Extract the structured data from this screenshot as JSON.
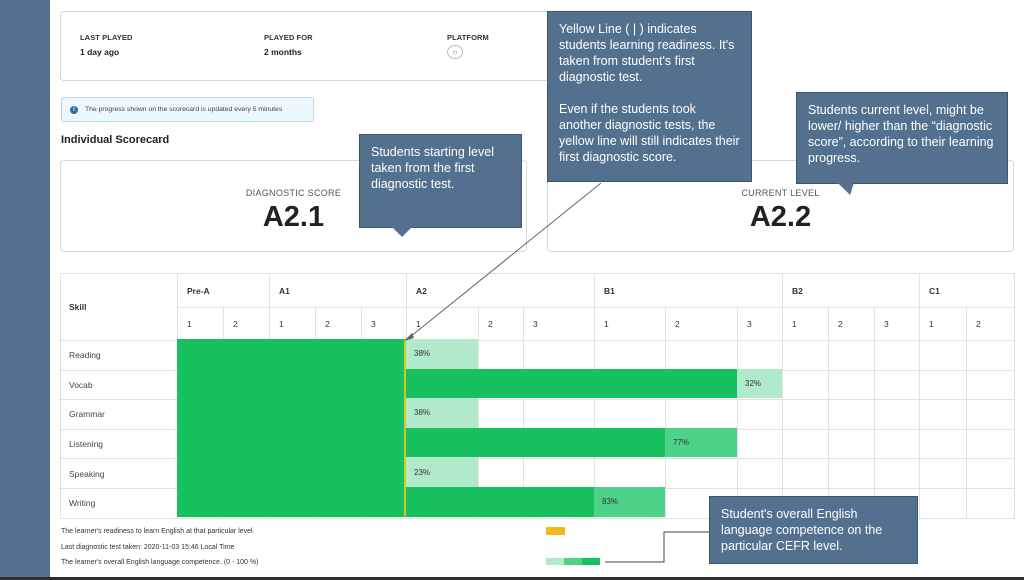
{
  "info": {
    "last_played_label": "LAST PLAYED",
    "last_played_value": "1 day ago",
    "played_for_label": "PLAYED FOR",
    "played_for_value": "2 months",
    "platform_label": "PLATFORM",
    "platform_icon": "gamepad-icon"
  },
  "notice": {
    "icon": "info-icon",
    "text": "The progress shown on the scorecard is updated every 5 minutes"
  },
  "section_title": "Individual Scorecard",
  "diagnostic": {
    "label": "DIAGNOSTIC SCORE",
    "value": "A2.1"
  },
  "current": {
    "label": "CURRENT LEVEL",
    "value": "A2.2"
  },
  "table": {
    "skill_header": "Skill",
    "levels": [
      {
        "name": "Pre-A",
        "subs": [
          "1",
          "2"
        ]
      },
      {
        "name": "A1",
        "subs": [
          "1",
          "2",
          "3"
        ]
      },
      {
        "name": "A2",
        "subs": [
          "1",
          "2",
          "3"
        ]
      },
      {
        "name": "B1",
        "subs": [
          "1",
          "2",
          "3"
        ]
      },
      {
        "name": "B2",
        "subs": [
          "1",
          "2",
          "3"
        ]
      },
      {
        "name": "C1",
        "subs": [
          "1",
          "2"
        ]
      }
    ],
    "skills": [
      {
        "name": "Reading",
        "full_through": 5,
        "partial_column": 5,
        "percent": 38,
        "label": "38%"
      },
      {
        "name": "Vocab",
        "full_through": 10,
        "partial_column": 10,
        "percent": 32,
        "label": "32%"
      },
      {
        "name": "Grammar",
        "full_through": 5,
        "partial_column": 5,
        "percent": 38,
        "label": "38%"
      },
      {
        "name": "Listening",
        "full_through": 9,
        "partial_column": 9,
        "percent": 77,
        "label": "77%"
      },
      {
        "name": "Speaking",
        "full_through": 5,
        "partial_column": 5,
        "percent": 23,
        "label": "23%"
      },
      {
        "name": "Writing",
        "full_through": 8,
        "partial_column": 8,
        "percent": 83,
        "label": "83%"
      }
    ],
    "readiness_column": 5
  },
  "legend": {
    "readiness": "The learner's readiness to learn English at that particular level.",
    "last_test": "Last diagnostic test taken: 2020-11-03 15:46 Local Time",
    "competence": "The learner's overall English language competence. (0 - 100 %)"
  },
  "colors": {
    "full": "#19c060",
    "mid": "#4ed28a",
    "light": "#b1e9cb",
    "readiness": "#f2b81e",
    "callout": "#53708f"
  },
  "callouts": {
    "yellow_line_p1": "Yellow Line ( | ) indicates students learning readiness. It's taken from student's first diagnostic test.",
    "yellow_line_p2": "Even if the students took another diagnostic tests, the yellow line will still indicates their first diagnostic score.",
    "current_level": "Students current level, might be lower/ higher than the “diagnostic score”, according to their learning progress.",
    "starting_level": "Students starting level taken from the first diagnostic test.",
    "competence": "Student's overall English language competence on the particular CEFR level."
  }
}
